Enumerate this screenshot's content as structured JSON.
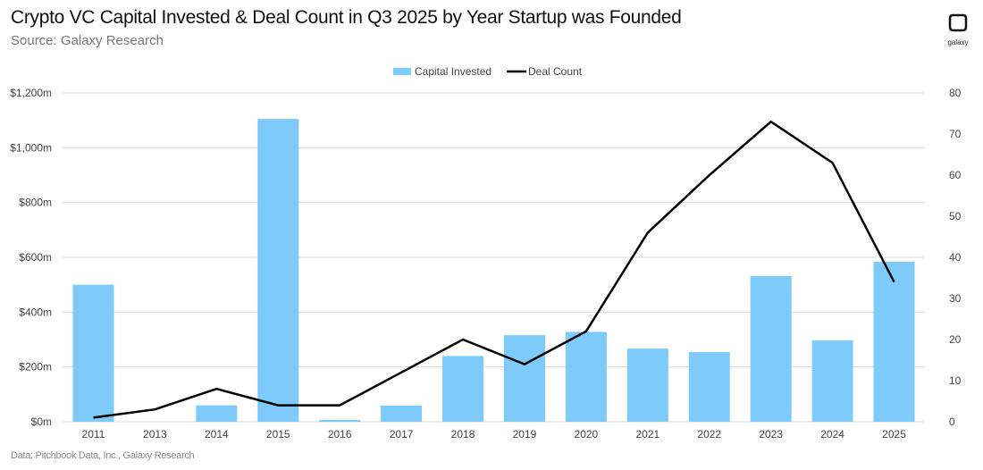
{
  "title": "Crypto VC Capital Invested & Deal Count in Q3 2025 by Year Startup was Founded",
  "subtitle": "Source: Galaxy Research",
  "footer": "Data: Pitchbook Data, Inc., Galaxy Research",
  "logo_text": "galaxy",
  "colors": {
    "bar": "#7ecbfb",
    "line": "#000000",
    "grid": "#d9d9d9"
  },
  "chart_data": {
    "type": "bar+line",
    "categories": [
      "2011",
      "2013",
      "2014",
      "2015",
      "2016",
      "2017",
      "2018",
      "2019",
      "2020",
      "2021",
      "2022",
      "2023",
      "2024",
      "2025"
    ],
    "series": [
      {
        "name": "Capital Invested",
        "type": "bar",
        "axis": "left",
        "values": [
          500,
          0,
          60,
          1105,
          7,
          59,
          240,
          316,
          328,
          267,
          254,
          532,
          297,
          584
        ]
      },
      {
        "name": "Deal Count",
        "type": "line",
        "axis": "right",
        "values": [
          1,
          3,
          8,
          4,
          4,
          12,
          20,
          14,
          22,
          46,
          60,
          73,
          63,
          34
        ]
      }
    ],
    "y_left": {
      "range": [
        0,
        1200
      ],
      "ticks": [
        "$0m",
        "$200m",
        "$400m",
        "$600m",
        "$800m",
        "$1,000m",
        "$1,200m"
      ]
    },
    "y_right": {
      "range": [
        0,
        80
      ],
      "ticks": [
        "0",
        "10",
        "20",
        "30",
        "40",
        "50",
        "60",
        "70",
        "80"
      ]
    },
    "grid": true,
    "legend_position": "top"
  }
}
